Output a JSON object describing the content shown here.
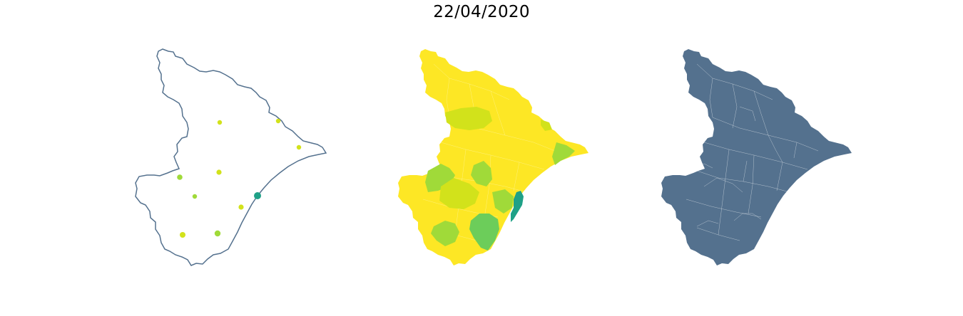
{
  "figure": {
    "title": "22/04/2020"
  },
  "colors": {
    "outline": "#54718e",
    "fill_dark": "#54718e",
    "yellow": "#fde725",
    "yellow_green": "#d2e21b",
    "light_green": "#a0da39",
    "green": "#6ccd5a",
    "teal_green": "#1fa187",
    "border_white": "#ffffff"
  },
  "panels": [
    {
      "kind": "point-map",
      "description_points": 11
    },
    {
      "kind": "choropleth"
    },
    {
      "kind": "municipality-outline"
    }
  ],
  "points": [
    {
      "color": "yellow_green"
    },
    {
      "color": "yellow_green"
    },
    {
      "color": "yellow_green"
    },
    {
      "color": "light_green"
    },
    {
      "color": "yellow_green"
    },
    {
      "color": "light_green"
    },
    {
      "color": "yellow_green"
    },
    {
      "color": "teal_green"
    },
    {
      "color": "yellow_green"
    },
    {
      "color": "light_green"
    },
    {
      "color": "green"
    }
  ]
}
